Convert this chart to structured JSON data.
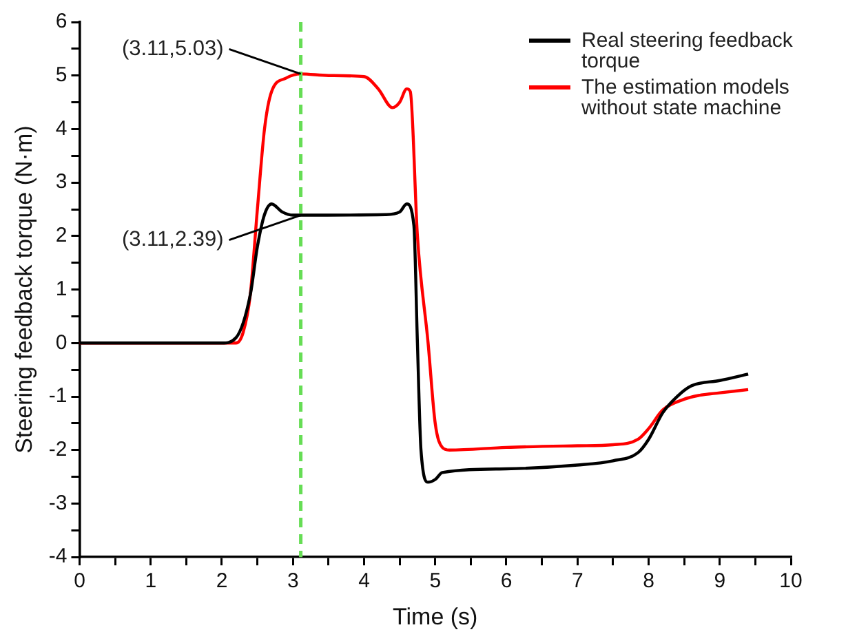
{
  "chart_data": {
    "type": "line",
    "xlabel": "Time (s)",
    "ylabel": "Steering feedback torque (N·m)",
    "xlim": [
      0,
      10
    ],
    "xticks": [
      0,
      {
        "value": 0.5,
        "label": null
      },
      1,
      {
        "value": 1.5,
        "label": null
      },
      2,
      {
        "value": 2.5,
        "label": null
      },
      3,
      {
        "value": 3.5,
        "label": null
      },
      4,
      {
        "value": 4.5,
        "label": null
      },
      5,
      {
        "value": 5.5,
        "label": null
      },
      6,
      {
        "value": 6.5,
        "label": null
      },
      7,
      {
        "value": 7.5,
        "label": null
      },
      8,
      {
        "value": 8.5,
        "label": null
      },
      9,
      {
        "value": 9.5,
        "label": null
      },
      10
    ],
    "ylim": [
      -4,
      6
    ],
    "yticks": [
      -4,
      {
        "value": -3.5,
        "label": null
      },
      -3,
      {
        "value": -2.5,
        "label": null
      },
      -2,
      {
        "value": -1.5,
        "label": null
      },
      -1,
      {
        "value": -0.5,
        "label": null
      },
      0,
      {
        "value": 0.5,
        "label": null
      },
      1,
      {
        "value": 1.5,
        "label": null
      },
      2,
      {
        "value": 2.5,
        "label": null
      },
      3,
      {
        "value": 3.5,
        "label": null
      },
      4,
      {
        "value": 4.5,
        "label": null
      },
      5,
      {
        "value": 5.5,
        "label": null
      },
      6
    ],
    "grid": false,
    "legend": "top right",
    "marker": "none",
    "line_style": "solid",
    "series": [
      {
        "name": "Real steering feedback torque",
        "color": "#000000",
        "x": [
          0,
          2.0,
          2.2,
          2.4,
          2.5,
          2.6,
          2.7,
          2.85,
          3.0,
          3.11,
          4.3,
          4.5,
          4.6,
          4.7,
          4.75,
          4.8,
          4.9,
          5.0,
          5.1,
          6,
          7,
          7.5,
          7.85,
          8.0,
          8.2,
          8.4,
          8.6,
          9,
          9.4
        ],
        "values": [
          0,
          0,
          0.1,
          0.9,
          1.8,
          2.4,
          2.6,
          2.45,
          2.39,
          2.39,
          2.4,
          2.45,
          2.6,
          2.2,
          0,
          -2.0,
          -2.6,
          -2.55,
          -2.42,
          -2.35,
          -2.28,
          -2.2,
          -2.05,
          -1.8,
          -1.3,
          -1.0,
          -0.8,
          -0.7,
          -0.58
        ]
      },
      {
        "name": "The estimation models without state machine",
        "color": "#ff0000",
        "x": [
          0,
          2.2,
          2.3,
          2.4,
          2.5,
          2.6,
          2.7,
          2.9,
          3.11,
          3.5,
          4.0,
          4.2,
          4.4,
          4.5,
          4.6,
          4.65,
          4.75,
          4.9,
          5.0,
          5.1,
          5.2,
          6,
          7,
          7.5,
          7.85,
          8.0,
          8.2,
          8.5,
          8.7,
          9,
          9.4
        ],
        "values": [
          0,
          0,
          0.2,
          0.9,
          2.5,
          4.0,
          4.7,
          4.95,
          5.03,
          5.0,
          4.98,
          4.75,
          4.4,
          4.5,
          4.75,
          4.7,
          2,
          0,
          -1.5,
          -1.95,
          -2.0,
          -1.95,
          -1.92,
          -1.9,
          -1.8,
          -1.6,
          -1.25,
          -1.05,
          -0.98,
          -0.93,
          -0.87
        ]
      }
    ],
    "ref_lines": [
      {
        "axis": "x",
        "value": 3.11,
        "color": "#66dd55",
        "line_style": "dashed"
      }
    ],
    "annotations": [
      {
        "text": "(3.11,5.03)",
        "x": 3.11,
        "y": 5.03
      },
      {
        "text": "(3.11,2.39)",
        "x": 3.11,
        "y": 2.39
      }
    ]
  }
}
